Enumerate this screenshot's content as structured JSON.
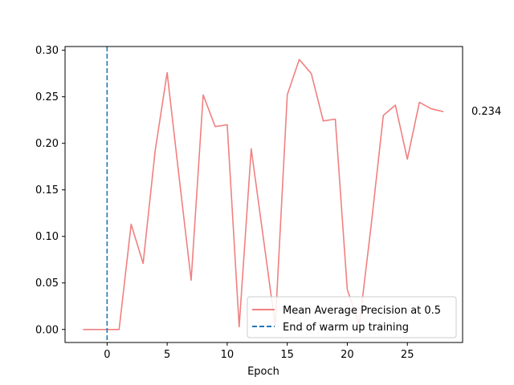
{
  "chart_data": {
    "type": "line",
    "title": "",
    "xlabel": "Epoch",
    "ylabel": "",
    "xlim": [
      -3.5,
      29.6
    ],
    "ylim": [
      -0.014,
      0.304
    ],
    "x_ticks": [
      0,
      5,
      10,
      15,
      20,
      25
    ],
    "x_tick_labels": [
      "0",
      "5",
      "10",
      "15",
      "20",
      "25"
    ],
    "y_ticks": [
      0.0,
      0.05,
      0.1,
      0.15,
      0.2,
      0.25,
      0.3
    ],
    "y_tick_labels": [
      "0.00",
      "0.05",
      "0.10",
      "0.15",
      "0.20",
      "0.25",
      "0.30"
    ],
    "grid": false,
    "legend_position": "lower-right",
    "series": [
      {
        "name": "Mean Average Precision at 0.5",
        "style": "solid",
        "color": "#f08080",
        "x": [
          -2,
          -1,
          0,
          1,
          2,
          3,
          4,
          5,
          6,
          7,
          8,
          9,
          10,
          11,
          12,
          13,
          14,
          15,
          16,
          17,
          18,
          19,
          20,
          21,
          22,
          23,
          24,
          25,
          26,
          27,
          28
        ],
        "y": [
          0.0,
          0.0,
          0.0,
          0.0,
          0.113,
          0.071,
          0.192,
          0.276,
          0.163,
          0.053,
          0.252,
          0.218,
          0.22,
          0.003,
          0.194,
          0.099,
          0.004,
          0.252,
          0.29,
          0.275,
          0.224,
          0.226,
          0.043,
          0.005,
          0.113,
          0.23,
          0.241,
          0.183,
          0.244,
          0.237,
          0.234
        ]
      }
    ],
    "vlines": [
      {
        "name": "End of warm up training",
        "x": 0,
        "style": "dashed",
        "color": "#1f77b4"
      }
    ],
    "annotations": [
      {
        "text": "0.234",
        "x": 28,
        "y": 0.234
      }
    ]
  }
}
